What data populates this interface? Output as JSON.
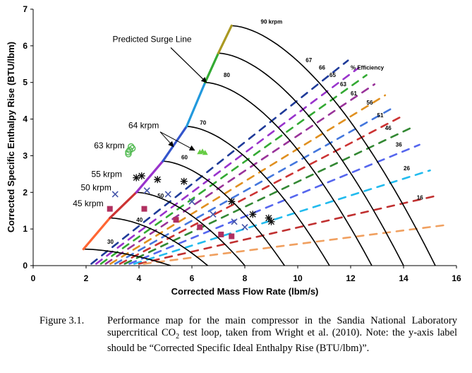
{
  "chart_data": {
    "type": "scatter",
    "ylabel": "Corrected Specific Enthalpy Rise (BTU/lbm)",
    "xlabel": "Corrected Mass Flow Rate (lbm/s)",
    "xlim": [
      0,
      16
    ],
    "ylim": [
      0,
      7
    ],
    "xticks": [
      "0",
      "2",
      "4",
      "6",
      "8",
      "10",
      "12",
      "14",
      "16"
    ],
    "yticks": [
      "0",
      "1",
      "2",
      "3",
      "4",
      "5",
      "6",
      "7"
    ],
    "grid": false,
    "surge_line": [
      [
        1.9,
        0.45
      ],
      [
        2.9,
        1.3
      ],
      [
        3.9,
        2.0
      ],
      [
        4.9,
        2.85
      ],
      [
        5.8,
        3.8
      ],
      [
        6.5,
        5.0
      ],
      [
        7.0,
        5.8
      ],
      [
        7.5,
        6.55
      ]
    ],
    "surge_label": "Predicted Surge Line",
    "speed_lines": [
      {
        "label": "30",
        "start": [
          1.9,
          0.45
        ],
        "end": [
          5.2,
          0.0
        ],
        "label_at": [
          2.8,
          0.6
        ]
      },
      {
        "label": "40",
        "start": [
          2.9,
          1.3
        ],
        "end": [
          6.6,
          0.0
        ],
        "label_at": [
          3.9,
          1.2
        ]
      },
      {
        "label": "50",
        "start": [
          3.9,
          2.0
        ],
        "end": [
          8.0,
          0.0
        ],
        "label_at": [
          4.7,
          1.85
        ]
      },
      {
        "label": "60",
        "start": [
          4.9,
          2.85
        ],
        "end": [
          9.5,
          0.0
        ],
        "label_at": [
          5.6,
          2.9
        ]
      },
      {
        "label": "70",
        "start": [
          5.8,
          3.8
        ],
        "end": [
          11.2,
          0.0
        ],
        "label_at": [
          6.3,
          3.85
        ]
      },
      {
        "label": "80",
        "start": [
          6.5,
          5.0
        ],
        "end": [
          12.8,
          0.0
        ],
        "label_at": [
          7.2,
          5.15
        ]
      },
      {
        "label": "",
        "start": [
          7.0,
          5.8
        ],
        "end": [
          14.0,
          0.0
        ],
        "label_at": [
          0,
          0
        ]
      },
      {
        "label": "90 krpm",
        "start": [
          7.5,
          6.55
        ],
        "end": [
          15.2,
          0.0
        ],
        "label_at": [
          8.6,
          6.6
        ]
      }
    ],
    "efficiency_label": "% Efficiency",
    "efficiency_lines": [
      {
        "label": "67",
        "color": "#1f3b99",
        "end": [
          11.9,
          5.6
        ],
        "label_at": [
          10.3,
          5.55
        ]
      },
      {
        "label": "66",
        "color": "#9933cc",
        "end": [
          12.3,
          5.4
        ],
        "label_at": [
          10.8,
          5.35
        ]
      },
      {
        "label": "65",
        "color": "#33aa33",
        "end": [
          12.6,
          5.2
        ],
        "label_at": [
          11.2,
          5.15
        ]
      },
      {
        "label": "63",
        "color": "#993399",
        "end": [
          12.9,
          4.95
        ],
        "label_at": [
          11.6,
          4.9
        ]
      },
      {
        "label": "61",
        "color": "#e09020",
        "end": [
          13.3,
          4.65
        ],
        "label_at": [
          12.0,
          4.65
        ]
      },
      {
        "label": "56",
        "color": "#4477dd",
        "end": [
          13.7,
          4.35
        ],
        "label_at": [
          12.6,
          4.4
        ]
      },
      {
        "label": "51",
        "color": "#cc3333",
        "end": [
          14.0,
          4.1
        ],
        "label_at": [
          13.0,
          4.05
        ]
      },
      {
        "label": "46",
        "color": "#338833",
        "end": [
          14.4,
          3.8
        ],
        "label_at": [
          13.3,
          3.7
        ]
      },
      {
        "label": "36",
        "color": "#5566ee",
        "end": [
          14.6,
          3.3
        ],
        "label_at": [
          13.7,
          3.25
        ]
      },
      {
        "label": "26",
        "color": "#22bbee",
        "end": [
          15.0,
          2.6
        ],
        "label_at": [
          14.0,
          2.6
        ]
      },
      {
        "label": "16",
        "color": "#c03030",
        "end": [
          15.2,
          1.9
        ],
        "label_at": [
          14.5,
          1.8
        ]
      },
      {
        "label": "",
        "color": "#f0a060",
        "end": [
          15.5,
          1.1
        ],
        "label_at": [
          0,
          0
        ]
      }
    ],
    "test_data": [
      {
        "label": "63 krpm",
        "marker": "circle-open",
        "color": "#55bb55",
        "label_at": [
          2.3,
          3.2
        ],
        "points": [
          [
            3.6,
            3.05
          ],
          [
            3.65,
            3.15
          ],
          [
            3.7,
            3.25
          ],
          [
            3.6,
            3.1
          ],
          [
            3.75,
            3.2
          ]
        ]
      },
      {
        "label": "64 krpm",
        "marker": "triangle",
        "color": "#66cc44",
        "label_at": [
          3.6,
          3.75
        ],
        "points": [
          [
            6.3,
            3.1
          ],
          [
            6.4,
            3.12
          ],
          [
            6.5,
            3.08
          ]
        ]
      },
      {
        "label": "55 krpm",
        "marker": "star",
        "color": "#111111",
        "label_at": [
          2.2,
          2.42
        ],
        "points": [
          [
            3.9,
            2.4
          ],
          [
            4.1,
            2.45
          ],
          [
            4.7,
            2.35
          ],
          [
            5.7,
            2.3
          ],
          [
            7.5,
            1.75
          ],
          [
            8.3,
            1.4
          ],
          [
            8.9,
            1.3
          ],
          [
            9.0,
            1.2
          ]
        ]
      },
      {
        "label": "50 krpm",
        "marker": "x",
        "color": "#4455aa",
        "label_at": [
          1.8,
          2.05
        ],
        "points": [
          [
            3.1,
            1.95
          ],
          [
            4.3,
            2.05
          ],
          [
            5.1,
            1.95
          ],
          [
            6.0,
            1.75
          ],
          [
            6.8,
            1.4
          ],
          [
            7.6,
            1.2
          ],
          [
            8.0,
            1.05
          ]
        ]
      },
      {
        "label": "45 krpm",
        "marker": "square",
        "color": "#b03060",
        "label_at": [
          1.5,
          1.62
        ],
        "points": [
          [
            2.9,
            1.55
          ],
          [
            4.2,
            1.55
          ],
          [
            5.4,
            1.25
          ],
          [
            6.3,
            1.05
          ],
          [
            7.1,
            0.85
          ],
          [
            7.5,
            0.8
          ]
        ]
      }
    ]
  },
  "caption": {
    "figure_number": "Figure 3.1.",
    "text_before_sub": "Performance map for the main compressor in the Sandia National Laboratory supercritical CO",
    "subscript": "2",
    "text_after_sub": " test loop, taken from Wright et al. (2010). Note: the y-axis label should be “Corrected Specific Ideal Enthalpy Rise (BTU/lbm)”."
  }
}
